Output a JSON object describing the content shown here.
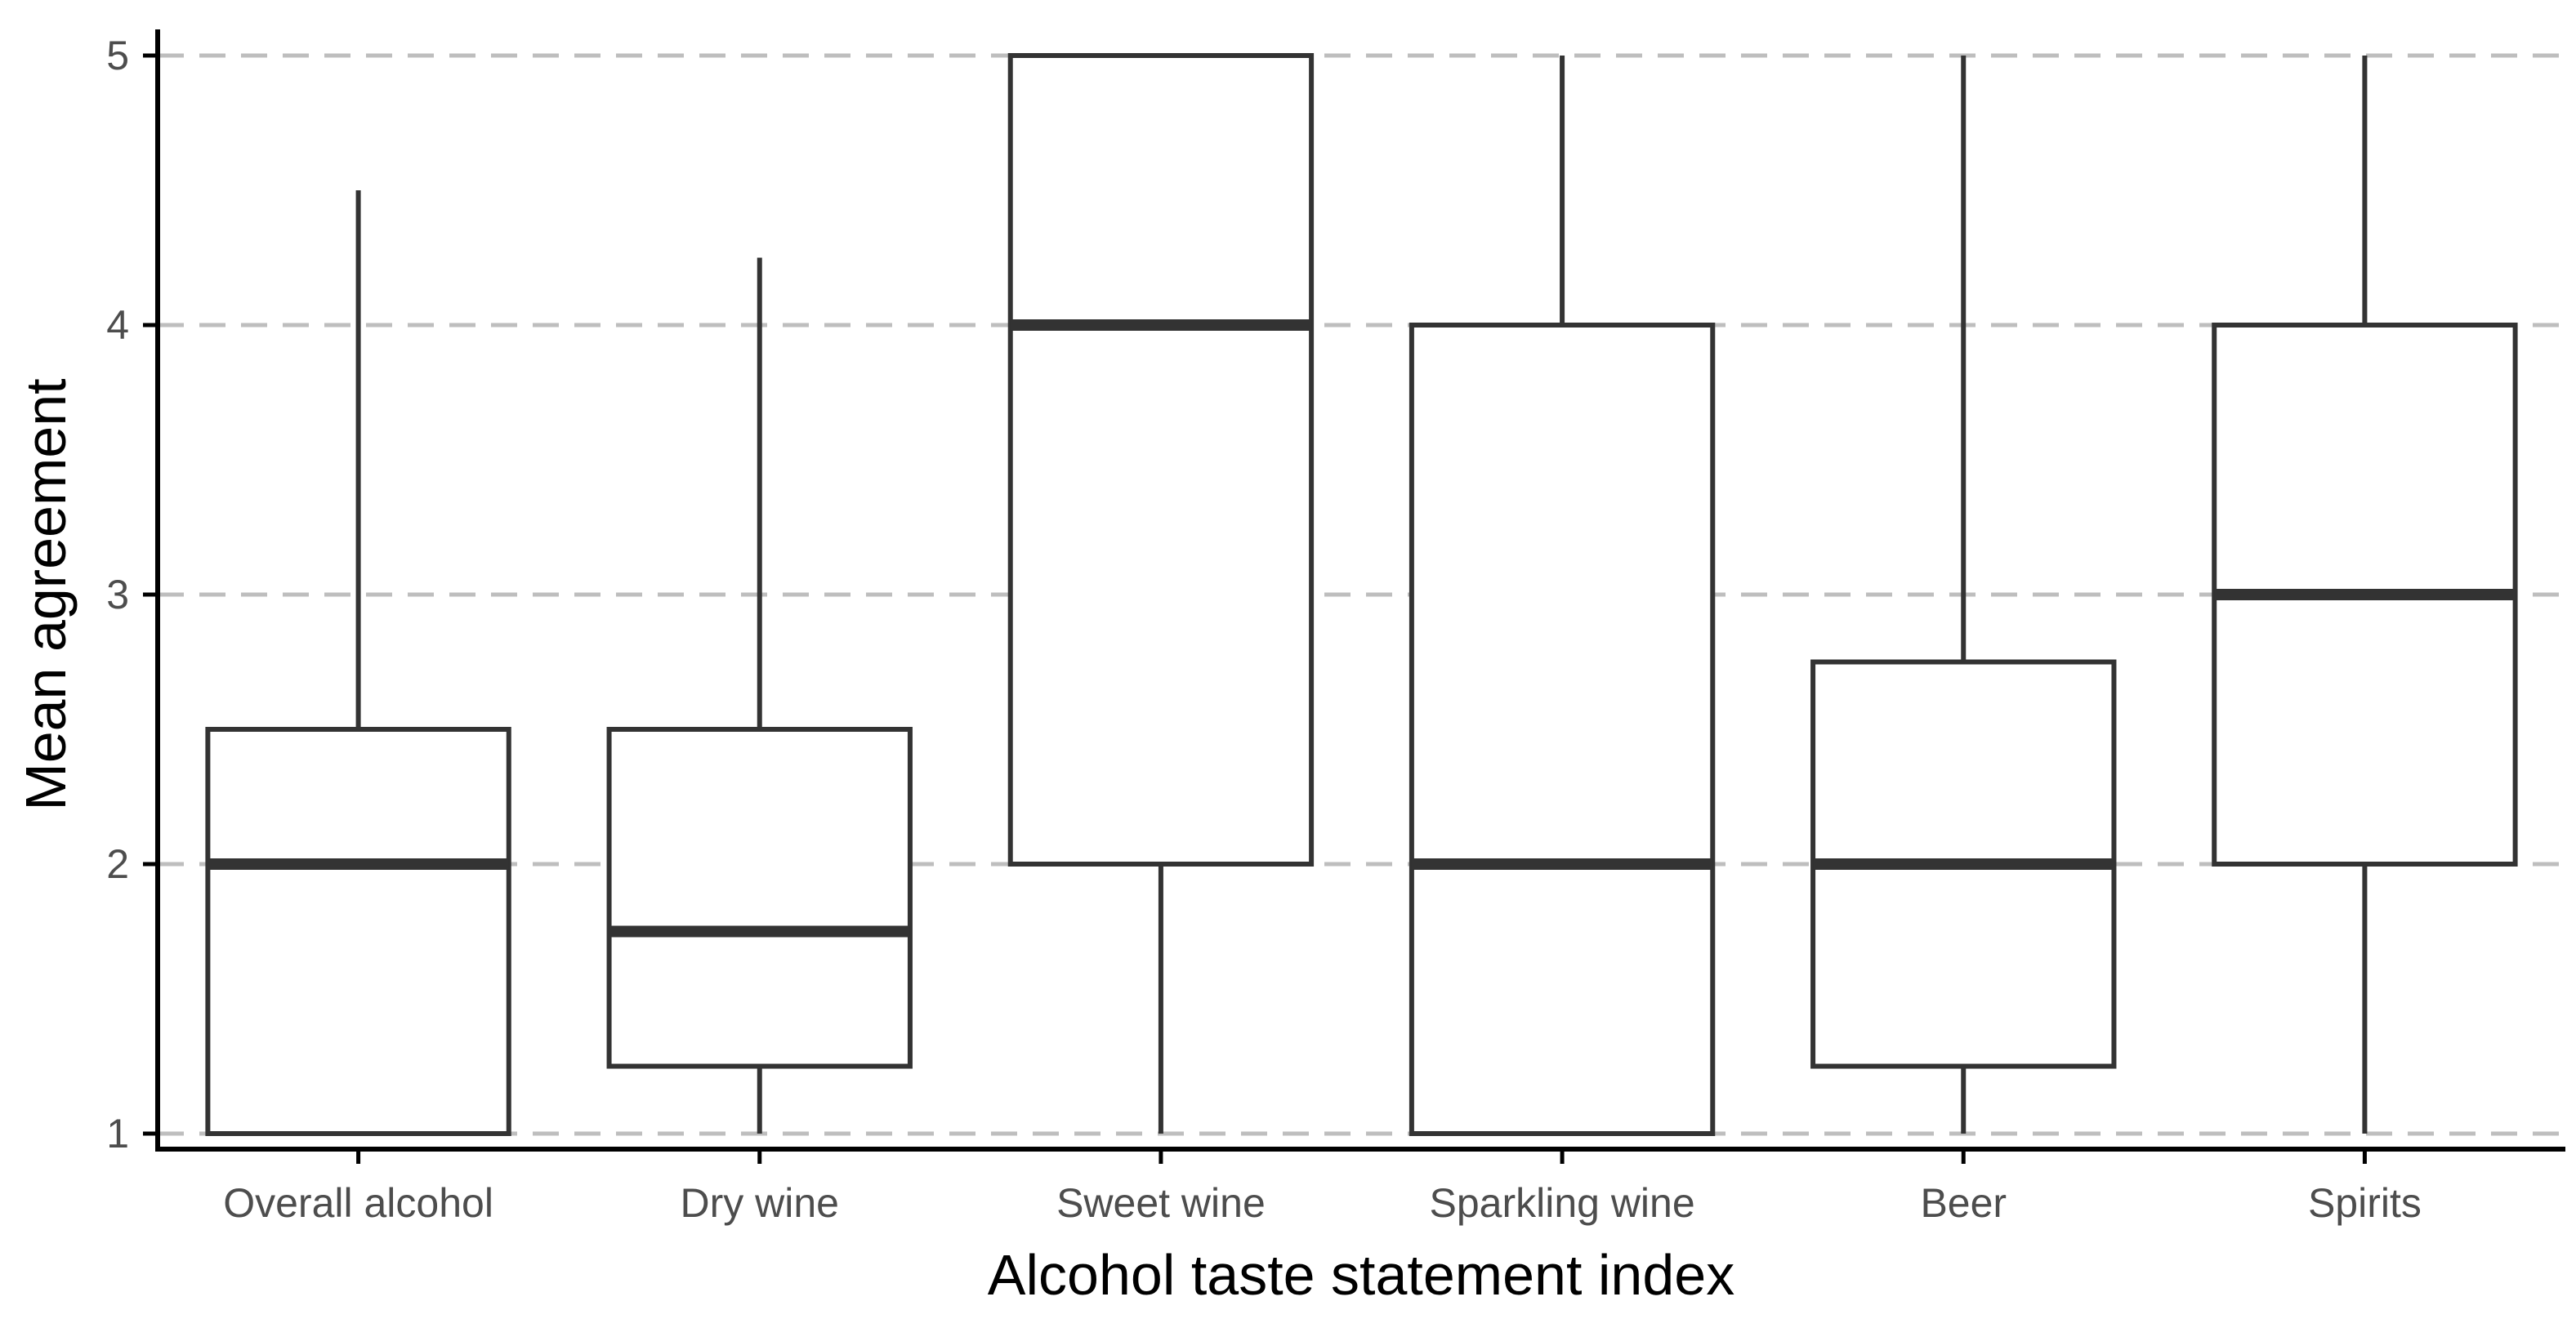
{
  "chart_data": {
    "type": "boxplot",
    "title": "",
    "xlabel": "Alcohol taste statement index",
    "ylabel": "Mean agreement",
    "ylim": [
      1,
      5
    ],
    "yticks": [
      1,
      2,
      3,
      4,
      5
    ],
    "grid": "horizontal dashed",
    "categories": [
      "Overall alcohol",
      "Dry wine",
      "Sweet wine",
      "Sparkling wine",
      "Beer",
      "Spirits"
    ],
    "boxes": [
      {
        "category": "Overall alcohol",
        "whisker_low": 1,
        "q1": 1,
        "median": 2,
        "q3": 2.5,
        "whisker_high": 4.5
      },
      {
        "category": "Dry wine",
        "whisker_low": 1,
        "q1": 1.25,
        "median": 1.75,
        "q3": 2.5,
        "whisker_high": 4.25
      },
      {
        "category": "Sweet wine",
        "whisker_low": 1,
        "q1": 2,
        "median": 4,
        "q3": 5,
        "whisker_high": 5
      },
      {
        "category": "Sparkling wine",
        "whisker_low": 1,
        "q1": 1,
        "median": 2,
        "q3": 4,
        "whisker_high": 5
      },
      {
        "category": "Beer",
        "whisker_low": 1,
        "q1": 1.25,
        "median": 2,
        "q3": 2.75,
        "whisker_high": 5
      },
      {
        "category": "Spirits",
        "whisker_low": 1,
        "q1": 2,
        "median": 3,
        "q3": 4,
        "whisker_high": 5
      }
    ],
    "colors": {
      "box_stroke": "#333333",
      "grid": "#bebebe",
      "axis": "#000000",
      "tick_text": "#4d4d4d",
      "title_text": "#000000"
    }
  }
}
